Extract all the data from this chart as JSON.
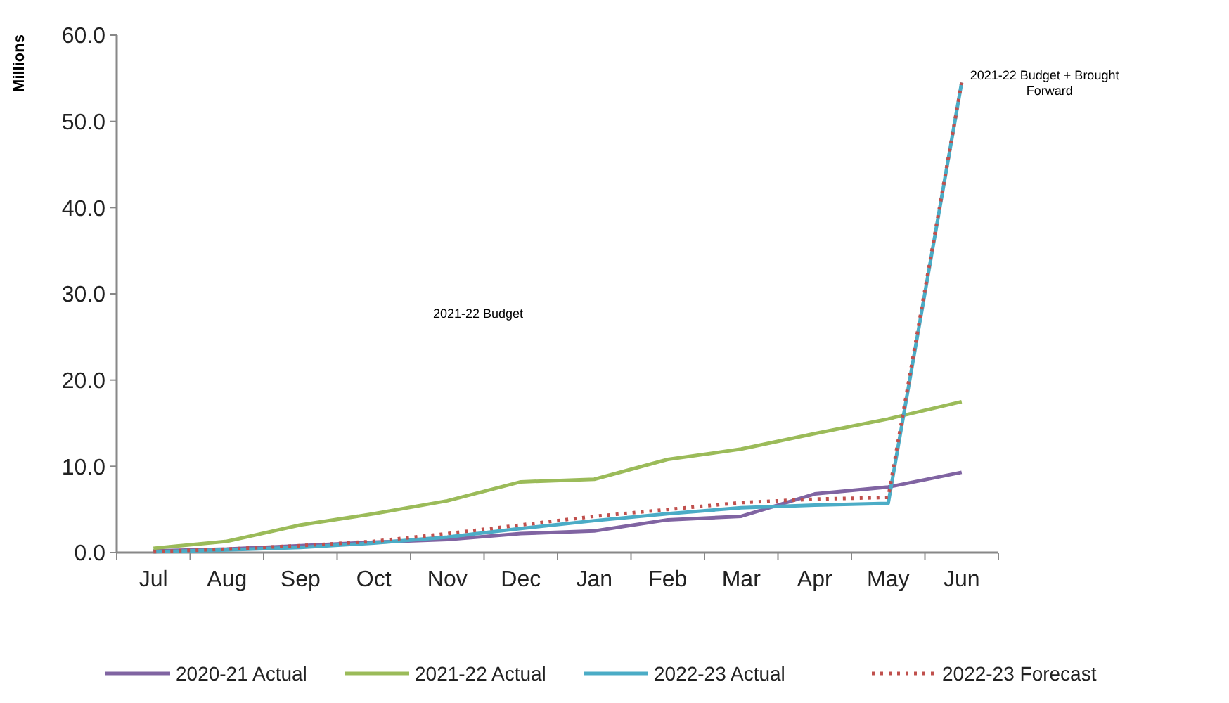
{
  "chart_data": {
    "type": "line",
    "ylabel": "Millions",
    "categories": [
      "Jul",
      "Aug",
      "Sep",
      "Oct",
      "Nov",
      "Dec",
      "Jan",
      "Feb",
      "Mar",
      "Apr",
      "May",
      "Jun"
    ],
    "series": [
      {
        "name": "2020-21 Actual",
        "color": "#8064a2",
        "values": [
          0.2,
          0.4,
          0.8,
          1.2,
          1.5,
          2.2,
          2.5,
          3.8,
          4.2,
          6.8,
          7.6,
          9.3
        ]
      },
      {
        "name": "2021-22 Actual",
        "color": "#9bbb59",
        "values": [
          0.5,
          1.3,
          3.2,
          4.5,
          6.0,
          8.2,
          8.5,
          10.8,
          12.0,
          13.8,
          15.5,
          17.5
        ]
      },
      {
        "name": "2022-23 Actual",
        "color": "#4bacc6",
        "values": [
          0.1,
          0.3,
          0.6,
          1.1,
          1.8,
          2.8,
          3.7,
          4.5,
          5.2,
          5.5,
          5.7,
          54.5
        ]
      },
      {
        "name": "2022-23 Forecast",
        "color": "#c0504d",
        "line_style": "dotted",
        "values": [
          0.1,
          0.4,
          0.8,
          1.3,
          2.2,
          3.2,
          4.2,
          5.0,
          5.8,
          6.2,
          6.4,
          54.5
        ]
      }
    ],
    "ylim": [
      0,
      60
    ],
    "yticks": [
      {
        "value": 0,
        "label": "0.0"
      },
      {
        "value": 10,
        "label": "10.0"
      },
      {
        "value": 20,
        "label": "20.0"
      },
      {
        "value": 30,
        "label": "30.0"
      },
      {
        "value": 40,
        "label": "40.0"
      },
      {
        "value": 50,
        "label": "50.0"
      },
      {
        "value": 60,
        "label": "60.0"
      }
    ],
    "annotations": [
      "2021-22 Budget",
      {
        "text": "2021-22 Budget + Brought Forward",
        "x": "Jun",
        "y": 54.5
      }
    ],
    "grid": false,
    "legend": "bottom",
    "line_style": "solid",
    "marker": "none"
  }
}
